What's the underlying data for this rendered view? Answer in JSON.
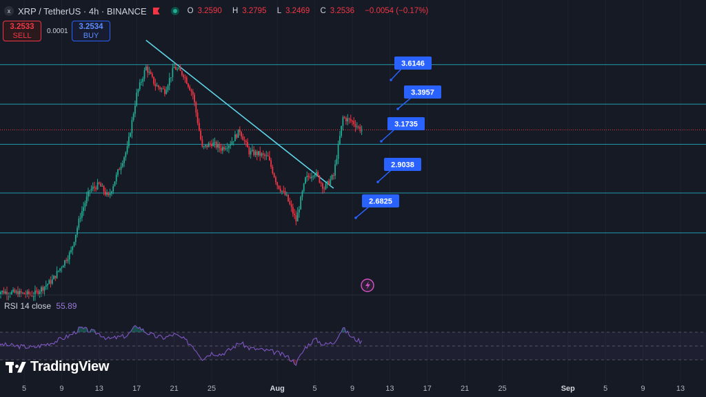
{
  "header": {
    "symbol_icon": "x",
    "title": "XRP / TetherUS · 4h · BINANCE",
    "ohlc": {
      "o_label": "O",
      "o": "3.2590",
      "h_label": "H",
      "h": "3.2795",
      "l_label": "L",
      "l": "3.2469",
      "c_label": "C",
      "c": "3.2536",
      "change": "−0.0054 (−0.17%)"
    }
  },
  "trade": {
    "sell_price": "3.2533",
    "sell_label": "SELL",
    "spread": "0.0001",
    "buy_price": "3.2534",
    "buy_label": "BUY"
  },
  "rsi": {
    "label": "RSI 14 close",
    "value": "55.89"
  },
  "logo": {
    "text": "TradingView"
  },
  "colors": {
    "background": "#161a25",
    "up": "#22ab94",
    "down": "#f23645",
    "level_line": "#26c6da",
    "callout": "#2962ff",
    "rsi": "#7e57c2"
  },
  "chart_data": {
    "type": "candlestick",
    "y_range": [
      2.35,
      3.82
    ],
    "x_ticks": [
      "5",
      "9",
      "13",
      "17",
      "21",
      "25",
      "Aug",
      "5",
      "9",
      "13",
      "17",
      "21",
      "25",
      "Sep",
      "5",
      "9",
      "13"
    ],
    "levels": [
      {
        "price": 3.6146,
        "label": "3.6146"
      },
      {
        "price": 3.3957,
        "label": "3.3957"
      },
      {
        "price": 3.1735,
        "label": "3.1735"
      },
      {
        "price": 2.9038,
        "label": "2.9038"
      },
      {
        "price": 2.6825,
        "label": "2.6825"
      }
    ],
    "current_price": 3.2536,
    "trendline": {
      "from": {
        "date": "Jul 18",
        "price": 3.75
      },
      "to": {
        "date": "Aug 7",
        "price": 2.93
      }
    },
    "price_path": [
      [
        "Jul 2",
        2.36
      ],
      [
        "Jul 6",
        2.34
      ],
      [
        "Jul 8",
        2.42
      ],
      [
        "Jul 10",
        2.58
      ],
      [
        "Jul 11",
        2.78
      ],
      [
        "Jul 12",
        2.92
      ],
      [
        "Jul 13",
        2.95
      ],
      [
        "Jul 14",
        2.88
      ],
      [
        "Jul 15",
        3.02
      ],
      [
        "Jul 16",
        3.15
      ],
      [
        "Jul 17",
        3.45
      ],
      [
        "Jul 18",
        3.6
      ],
      [
        "Jul 19",
        3.5
      ],
      [
        "Jul 20",
        3.47
      ],
      [
        "Jul 21",
        3.6
      ],
      [
        "Jul 22",
        3.56
      ],
      [
        "Jul 23",
        3.45
      ],
      [
        "Jul 24",
        3.15
      ],
      [
        "Jul 25",
        3.18
      ],
      [
        "Jul 26",
        3.15
      ],
      [
        "Jul 27",
        3.18
      ],
      [
        "Jul 28",
        3.25
      ],
      [
        "Jul 29",
        3.13
      ],
      [
        "Jul 30",
        3.12
      ],
      [
        "Jul 31",
        3.1
      ],
      [
        "Aug 1",
        2.95
      ],
      [
        "Aug 2",
        2.88
      ],
      [
        "Aug 3",
        2.75
      ],
      [
        "Aug 4",
        2.98
      ],
      [
        "Aug 5",
        3.02
      ],
      [
        "Aug 6",
        2.93
      ],
      [
        "Aug 7",
        3.0
      ],
      [
        "Aug 8",
        3.32
      ],
      [
        "Aug 9",
        3.3
      ],
      [
        "Aug 10",
        3.25
      ]
    ],
    "rsi_path": [
      [
        "Jul 2",
        53
      ],
      [
        "Jul 4",
        50
      ],
      [
        "Jul 6",
        48
      ],
      [
        "Jul 8",
        55
      ],
      [
        "Jul 10",
        66
      ],
      [
        "Jul 11",
        76
      ],
      [
        "Jul 12",
        72
      ],
      [
        "Jul 13",
        68
      ],
      [
        "Jul 14",
        60
      ],
      [
        "Jul 16",
        65
      ],
      [
        "Jul 17",
        80
      ],
      [
        "Jul 18",
        70
      ],
      [
        "Jul 19",
        64
      ],
      [
        "Jul 20",
        62
      ],
      [
        "Jul 21",
        67
      ],
      [
        "Jul 22",
        60
      ],
      [
        "Jul 23",
        50
      ],
      [
        "Jul 24",
        32
      ],
      [
        "Jul 25",
        40
      ],
      [
        "Jul 26",
        38
      ],
      [
        "Jul 27",
        45
      ],
      [
        "Jul 28",
        55
      ],
      [
        "Jul 29",
        47
      ],
      [
        "Jul 30",
        45
      ],
      [
        "Jul 31",
        43
      ],
      [
        "Aug 1",
        40
      ],
      [
        "Aug 2",
        35
      ],
      [
        "Aug 3",
        25
      ],
      [
        "Aug 4",
        48
      ],
      [
        "Aug 5",
        60
      ],
      [
        "Aug 6",
        52
      ],
      [
        "Aug 7",
        55
      ],
      [
        "Aug 8",
        76
      ],
      [
        "Aug 9",
        62
      ],
      [
        "Aug 10",
        56
      ]
    ],
    "rsi_range": [
      0,
      100
    ],
    "rsi_bands": [
      70,
      50,
      30
    ]
  }
}
